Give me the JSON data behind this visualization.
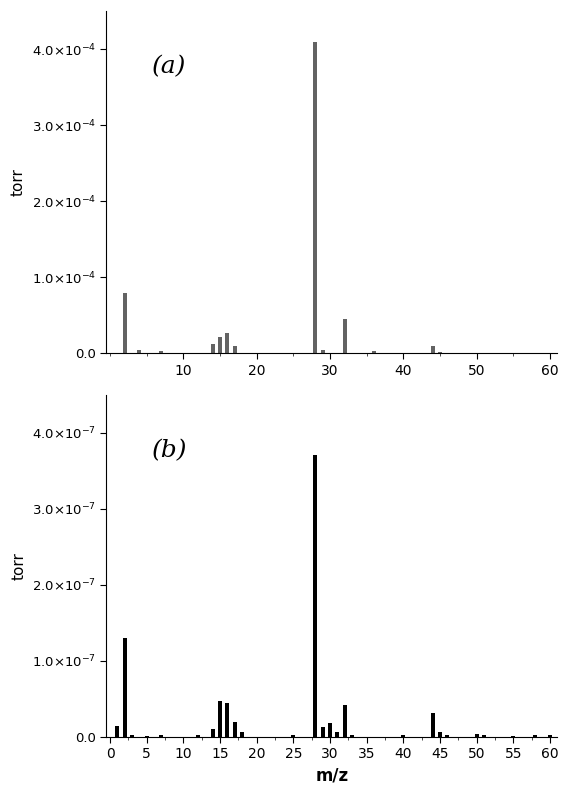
{
  "panel_a": {
    "label": "(a)",
    "color": "#636363",
    "mz": [
      2,
      4,
      7,
      14,
      15,
      16,
      17,
      28,
      29,
      32,
      36,
      44,
      45,
      50,
      58
    ],
    "torr": [
      8e-05,
      5e-06,
      3e-06,
      1.2e-05,
      2.2e-05,
      2.7e-05,
      1e-05,
      0.00041,
      5e-06,
      4.5e-05,
      3e-06,
      1e-05,
      2e-06,
      1e-06,
      1e-06
    ],
    "ylim": [
      0,
      0.00045
    ],
    "yticks": [
      0.0,
      0.0001,
      0.0002,
      0.0003,
      0.0004
    ],
    "xlim": [
      -0.5,
      61
    ],
    "xticks": [
      10,
      20,
      30,
      40,
      50,
      60
    ],
    "exponent": -4
  },
  "panel_b": {
    "label": "(b)",
    "color": "#000000",
    "mz": [
      1,
      2,
      3,
      5,
      7,
      12,
      14,
      15,
      16,
      17,
      18,
      25,
      28,
      29,
      30,
      31,
      32,
      33,
      40,
      44,
      45,
      46,
      50,
      51,
      55,
      58,
      60
    ],
    "torr": [
      1.5e-08,
      1.3e-07,
      2e-09,
      1e-09,
      2e-09,
      3e-09,
      1e-08,
      4.7e-08,
      4.5e-08,
      2e-08,
      6e-09,
      2e-09,
      3.7e-07,
      1.3e-08,
      1.8e-08,
      6e-09,
      4.2e-08,
      2e-09,
      3e-09,
      3.2e-08,
      6e-09,
      2e-09,
      4e-09,
      2e-09,
      1e-09,
      2e-09,
      2e-09
    ],
    "ylim": [
      0,
      4.5e-07
    ],
    "yticks": [
      0.0,
      1e-07,
      2e-07,
      3e-07,
      4e-07
    ],
    "xlim": [
      -0.5,
      61
    ],
    "xticks": [
      0,
      5,
      10,
      15,
      20,
      25,
      30,
      35,
      40,
      45,
      50,
      55,
      60
    ],
    "xlabel": "m/z",
    "exponent": -7
  },
  "bar_width": 0.55,
  "ylabel": "torr"
}
